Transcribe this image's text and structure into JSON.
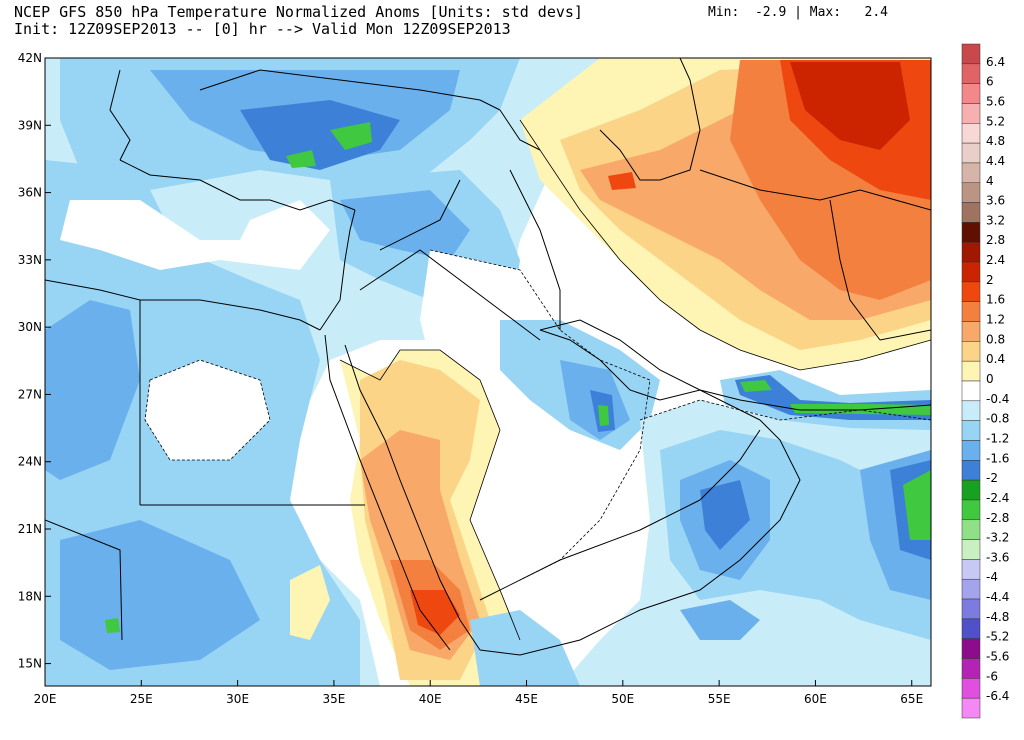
{
  "header": {
    "title": "NCEP GFS 850 hPa Temperature Normalized Anoms [Units: std devs]",
    "subtitle": "Init: 12Z09SEP2013 -- [0] hr --> Valid Mon 12Z09SEP2013",
    "minmax": "Min:  -2.9 | Max:   2.4"
  },
  "axes": {
    "lat_labels": [
      "42N",
      "39N",
      "36N",
      "33N",
      "30N",
      "27N",
      "24N",
      "21N",
      "18N",
      "15N"
    ],
    "lat_values": [
      42,
      39,
      36,
      33,
      30,
      27,
      24,
      21,
      18,
      15
    ],
    "lon_labels": [
      "20E",
      "25E",
      "30E",
      "35E",
      "40E",
      "45E",
      "50E",
      "55E",
      "60E",
      "65E"
    ],
    "lon_values": [
      20,
      25,
      30,
      35,
      40,
      45,
      50,
      55,
      60,
      65
    ],
    "lon_range": [
      20,
      66
    ],
    "lat_range": [
      14,
      42
    ]
  },
  "colorbar": {
    "labels": [
      "6.4",
      "6",
      "5.6",
      "5.2",
      "4.8",
      "4.4",
      "4",
      "3.6",
      "3.2",
      "2.8",
      "2.4",
      "2",
      "1.6",
      "1.2",
      "0.8",
      "0.4",
      "0",
      "-0.4",
      "-0.8",
      "-1.2",
      "-1.6",
      "-2",
      "-2.4",
      "-2.8",
      "-3.2",
      "-3.6",
      "-4",
      "-4.4",
      "-4.8",
      "-5.2",
      "-5.6",
      "-6",
      "-6.4"
    ],
    "colors": [
      "#c8484c",
      "#e06466",
      "#f2888a",
      "#f6b0b0",
      "#f8d8d4",
      "#e8d0c8",
      "#d6b4a8",
      "#bc9484",
      "#a07262",
      "#601000",
      "#a01800",
      "#cc2400",
      "#ee4810",
      "#f48040",
      "#f8a868",
      "#fcd488",
      "#fef4b4",
      "#ffffff",
      "#c8ecf8",
      "#98d4f4",
      "#6ab0ec",
      "#3c80d8",
      "#18a020",
      "#40c840",
      "#90e088",
      "#c8f0c0",
      "#c8c8f4",
      "#a4a4ec",
      "#7c7ce0",
      "#5050c8",
      "#8c0c8c",
      "#b424b4",
      "#e050e0",
      "#f488f4"
    ]
  },
  "map": {
    "anomaly_fills": {
      "land_white": "#ffffff",
      "neg_light": "#c8ecf8",
      "neg_mid": "#98d4f4",
      "neg_strong": "#6ab0ec",
      "neg_stronger": "#3c80d8",
      "neg_green": "#40c840",
      "pos_light": "#fef4b4",
      "pos_mid": "#fcd488",
      "pos_strong": "#f8a868",
      "pos_stronger": "#f48040",
      "pos_red": "#ee4810",
      "pos_darkred": "#cc2400"
    }
  }
}
